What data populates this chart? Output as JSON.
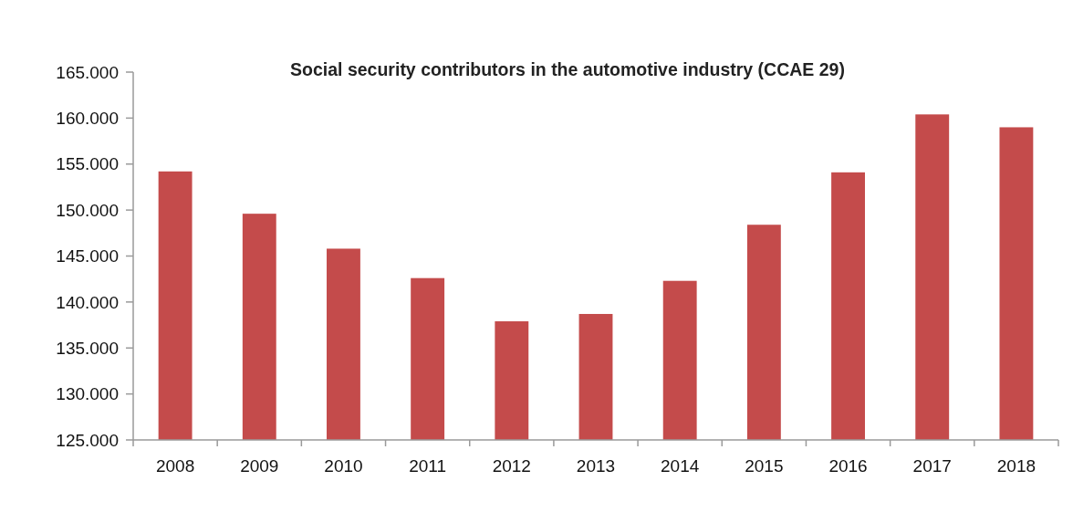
{
  "chart_data": {
    "type": "bar",
    "title": "Social security contributors in the automotive industry (CCAE 29)",
    "categories": [
      "2008",
      "2009",
      "2010",
      "2011",
      "2012",
      "2013",
      "2014",
      "2015",
      "2016",
      "2017",
      "2018"
    ],
    "values": [
      154200,
      149600,
      145800,
      142600,
      137900,
      138700,
      142300,
      148400,
      154100,
      160400,
      159000
    ],
    "color": "#c44b4b",
    "ylim": [
      125000,
      165000
    ],
    "yticks": [
      {
        "value": 125000,
        "label": "125.000"
      },
      {
        "value": 130000,
        "label": "130.000"
      },
      {
        "value": 135000,
        "label": "135.000"
      },
      {
        "value": 140000,
        "label": "140.000"
      },
      {
        "value": 145000,
        "label": "145.000"
      },
      {
        "value": 150000,
        "label": "150.000"
      },
      {
        "value": 155000,
        "label": "155.000"
      },
      {
        "value": 160000,
        "label": "160.000"
      },
      {
        "value": 165000,
        "label": "165.000"
      }
    ],
    "grid": false
  }
}
